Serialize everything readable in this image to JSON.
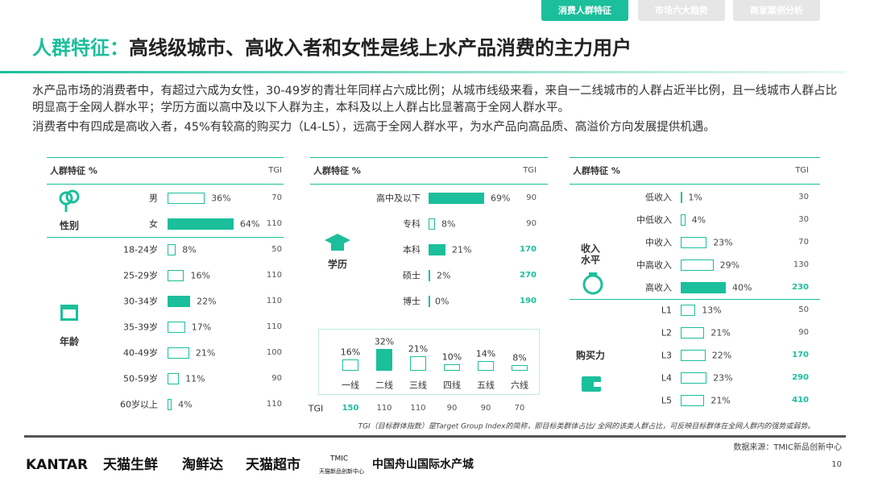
{
  "tabs": [
    "消费人群特征",
    "市场六大趋势",
    "商家案例分析"
  ],
  "title_prefix": "人群特征：",
  "title": "高线级城市、高收入者和女性是线上水产品消费的主力用户",
  "paragraphs": [
    "水产品市场的消费者中，有超过六成为女性，30-49岁的青壮年同样占六成比例；从城市线级来看，来自一二线城市的人群占近半比例，且一线城市人群占比明显高于全网人群水平；学历方面以高中及以下人群为主，本科及以上人群占比显著高于全网人群水平。",
    "消费者中有四成是高收入者，45%有较高的购买力（L4-L5），远高于全网人群水平，为水产品向高品质、高溢价方向发展提供机遇。"
  ],
  "panels": [
    {
      "header": "人群特征 %",
      "tgi_header": "TGI",
      "groups": [
        {
          "label": "性别",
          "rows": [
            {
              "name": "男",
              "value": 36,
              "label": "36%",
              "tgi": 70
            },
            {
              "name": "女",
              "value": 64,
              "label": "64%",
              "tgi": 110,
              "filled": true
            }
          ]
        },
        {
          "label": "年龄",
          "rows": [
            {
              "name": "18-24岁",
              "value": 8,
              "label": "8%",
              "tgi": 50
            },
            {
              "name": "25-29岁",
              "value": 16,
              "label": "16%",
              "tgi": 110
            },
            {
              "name": "30-34岁",
              "value": 22,
              "label": "22%",
              "tgi": 110,
              "filled": true
            },
            {
              "name": "35-39岁",
              "value": 17,
              "label": "17%",
              "tgi": 110
            },
            {
              "name": "40-49岁",
              "value": 21,
              "label": "21%",
              "tgi": 100
            },
            {
              "name": "50-59岁",
              "value": 11,
              "label": "11%",
              "tgi": 90
            },
            {
              "name": "60岁以上",
              "value": 4,
              "label": "4%",
              "tgi": 110
            }
          ]
        }
      ]
    },
    {
      "header": "人群特征 %",
      "tgi_header": "TGI",
      "groups": [
        {
          "label": "学历",
          "rows": [
            {
              "name": "高中及以下",
              "value": 69,
              "label": "69%",
              "tgi": 90,
              "filled": true
            },
            {
              "name": "专科",
              "value": 8,
              "label": "8%",
              "tgi": 90
            },
            {
              "name": "本科",
              "value": 21,
              "label": "21%",
              "tgi": 170,
              "filled": true,
              "tgi_highlight": true
            },
            {
              "name": "硕士",
              "value": 2,
              "label": "2%",
              "tgi": 270,
              "tgi_highlight": true
            },
            {
              "name": "博士",
              "value": 0,
              "label": "0%",
              "tgi": 190,
              "tgi_highlight": true
            }
          ]
        }
      ],
      "city_tiers": {
        "categories": [
          "一线",
          "二线",
          "三线",
          "四线",
          "五线",
          "六线"
        ],
        "values": [
          16,
          32,
          21,
          10,
          14,
          8
        ],
        "value_labels": [
          "16%",
          "32%",
          "21%",
          "10%",
          "14%",
          "8%"
        ],
        "filled": [
          false,
          true,
          false,
          false,
          false,
          false
        ],
        "tgi_label": "TGI",
        "tgi": [
          150,
          110,
          110,
          90,
          90,
          70
        ],
        "tgi_highlight": [
          true,
          false,
          false,
          false,
          false,
          false
        ]
      }
    },
    {
      "header": "人群特征 %",
      "tgi_header": "TGI",
      "groups": [
        {
          "label": "收入水平",
          "rows": [
            {
              "name": "低收入",
              "value": 1,
              "label": "1%",
              "tgi": 30
            },
            {
              "name": "中低收入",
              "value": 4,
              "label": "4%",
              "tgi": 30
            },
            {
              "name": "中收入",
              "value": 23,
              "label": "23%",
              "tgi": 70
            },
            {
              "name": "中高收入",
              "value": 29,
              "label": "29%",
              "tgi": 130
            },
            {
              "name": "高收入",
              "value": 40,
              "label": "40%",
              "tgi": 230,
              "filled": true,
              "tgi_highlight": true
            }
          ]
        },
        {
          "label": "购买力",
          "rows": [
            {
              "name": "L1",
              "value": 13,
              "label": "13%",
              "tgi": 50
            },
            {
              "name": "L2",
              "value": 21,
              "label": "21%",
              "tgi": 90
            },
            {
              "name": "L3",
              "value": 22,
              "label": "22%",
              "tgi": 170,
              "tgi_highlight": true
            },
            {
              "name": "L4",
              "value": 23,
              "label": "23%",
              "tgi": 290,
              "tgi_highlight": true
            },
            {
              "name": "L5",
              "value": 21,
              "label": "21%",
              "tgi": 410,
              "tgi_highlight": true
            }
          ]
        }
      ]
    }
  ],
  "footnote": "TGI（目标群体指数）是Target Group Index的简称，即目标类群体占比/ 全网的该类人群占比，可反映目标群体在全网人群内的强势或弱势。",
  "source": "数据来源：TMIC新品创新中心",
  "page": "10",
  "footer_logos": [
    "KANTAR",
    "天猫生鲜",
    "淘鲜达",
    "天猫超市",
    "TMIC",
    "天猫新品创新中心",
    "中国舟山国际水产城"
  ]
}
